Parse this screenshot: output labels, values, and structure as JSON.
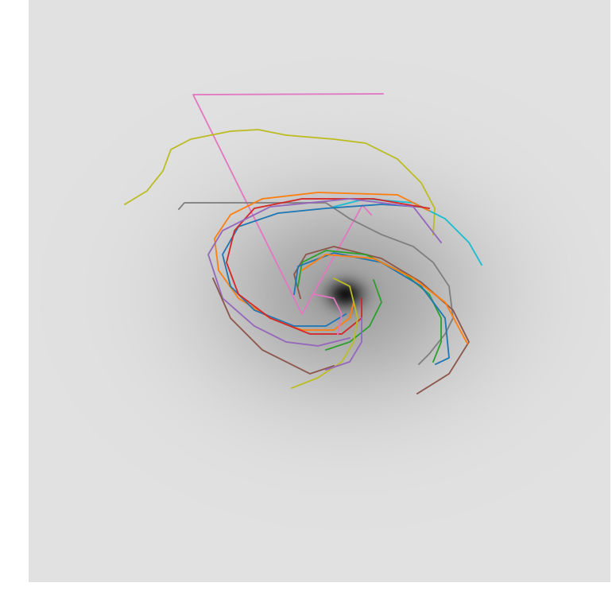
{
  "chart_data": {
    "type": "line",
    "tick_labels": false,
    "xlim": [
      36,
      768
    ],
    "ylim": [
      732,
      0
    ],
    "series": [
      {
        "color": "#e377c2",
        "x": [
          482,
          243,
          380,
          456,
          467
        ],
        "values": [
          118,
          119,
          395,
          258,
          270
        ]
      },
      {
        "color": "#bcbd22",
        "x": [
          157,
          185,
          205,
          215,
          240,
          290,
          325,
          360,
          420,
          460,
          500,
          530,
          547,
          545
        ],
        "values": [
          257,
          240,
          215,
          188,
          175,
          165,
          163,
          170,
          175,
          180,
          200,
          230,
          262,
          295
        ]
      },
      {
        "color": "#7f7f7f",
        "x": [
          225,
          232,
          410,
          440,
          480,
          520,
          545,
          565,
          570,
          560,
          540,
          527
        ],
        "values": [
          263,
          255,
          255,
          275,
          295,
          310,
          330,
          360,
          400,
          420,
          445,
          458
        ]
      },
      {
        "color": "#17becf",
        "x": [
          420,
          460,
          520,
          560,
          590,
          606
        ],
        "values": [
          260,
          250,
          255,
          275,
          305,
          333
        ]
      },
      {
        "color": "#ff7f0e",
        "x": [
          540,
          500,
          400,
          330,
          290,
          270,
          275,
          300,
          340,
          380,
          420,
          440,
          445
        ],
        "values": [
          265,
          245,
          242,
          250,
          270,
          300,
          340,
          375,
          400,
          415,
          415,
          400,
          380
        ]
      },
      {
        "color": "#1f77b4",
        "x": [
          530,
          480,
          410,
          350,
          300,
          280,
          290,
          320,
          370,
          410,
          435
        ],
        "values": [
          260,
          257,
          262,
          268,
          285,
          320,
          360,
          390,
          410,
          410,
          395
        ]
      },
      {
        "color": "#d62728",
        "x": [
          540,
          470,
          380,
          320,
          295,
          285,
          300,
          340,
          390,
          430,
          455,
          455
        ],
        "values": [
          262,
          250,
          250,
          262,
          290,
          330,
          370,
          400,
          420,
          420,
          400,
          375
        ]
      },
      {
        "color": "#9467bd",
        "x": [
          555,
          520,
          440,
          340,
          280,
          262,
          280,
          320,
          360,
          400,
          440
        ],
        "values": [
          305,
          260,
          250,
          260,
          290,
          320,
          375,
          410,
          430,
          435,
          425
        ]
      },
      {
        "color": "#8c564b",
        "x": [
          525,
          565,
          590,
          570,
          530,
          480,
          420,
          385,
          370,
          378
        ],
        "values": [
          495,
          470,
          430,
          390,
          355,
          325,
          310,
          320,
          345,
          375
        ]
      },
      {
        "color": "#8c564b",
        "x": [
          268,
          290,
          330,
          390,
          420
        ],
        "values": [
          350,
          400,
          440,
          470,
          460
        ]
      },
      {
        "color": "#2ca02c",
        "x": [
          375,
          380,
          410,
          460,
          510,
          540,
          555,
          555,
          545
        ],
        "values": [
          360,
          330,
          315,
          320,
          345,
          370,
          400,
          430,
          455
        ]
      },
      {
        "color": "#2ca02c",
        "x": [
          470,
          480,
          465,
          440,
          410
        ],
        "values": [
          352,
          380,
          410,
          430,
          440
        ]
      },
      {
        "color": "#1f77b4",
        "x": [
          370,
          375,
          420,
          480,
          530,
          560,
          565,
          548
        ],
        "values": [
          370,
          335,
          318,
          330,
          360,
          400,
          450,
          458
        ]
      },
      {
        "color": "#ff7f0e",
        "x": [
          380,
          410,
          470,
          520,
          560,
          588
        ],
        "values": [
          340,
          320,
          325,
          350,
          380,
          432
        ]
      },
      {
        "color": "#bcbd22",
        "x": [
          367,
          400,
          430,
          445,
          450,
          440,
          420
        ],
        "values": [
          488,
          475,
          455,
          430,
          400,
          360,
          350
        ]
      },
      {
        "color": "#e377c2",
        "x": [
          395,
          420,
          430,
          425
        ],
        "values": [
          370,
          375,
          395,
          420
        ]
      },
      {
        "color": "#9467bd",
        "x": [
          410,
          440,
          455,
          455
        ],
        "values": [
          465,
          455,
          430,
          400
        ]
      }
    ]
  }
}
